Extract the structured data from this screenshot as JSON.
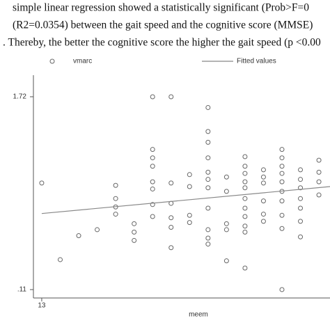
{
  "paragraph_lines": [
    "simple linear regression showed a statistically significant (Prob>F=0",
    "(R2=0.0354) between the gait speed and the cognitive score (MMSE)",
    ". Thereby, the better the cognitive score the higher the gait speed (p <0.00"
  ],
  "chart_data": {
    "type": "scatter",
    "x_label": "meem",
    "xlim": [
      12.55,
      28.6
    ],
    "ylim": [
      0.04,
      1.9
    ],
    "xticks": [
      13
    ],
    "yticks": [
      1.72,
      {
        "value": 0.11,
        "label": ".11"
      }
    ],
    "legend": "top",
    "series": [
      {
        "name": "vmarc",
        "color": "#666666",
        "x": [
          13,
          14,
          15,
          16,
          17,
          17,
          17,
          17,
          18,
          18,
          18,
          19,
          19,
          19,
          19,
          19,
          19,
          19,
          19,
          20,
          20,
          20,
          20,
          20,
          20,
          21,
          21,
          21,
          21,
          22,
          22,
          22,
          22,
          22,
          22,
          22,
          22,
          22,
          22,
          22,
          23,
          23,
          23,
          23,
          23,
          24,
          24,
          24,
          24,
          24,
          24,
          24,
          24,
          24,
          24,
          24,
          25,
          25,
          25,
          25,
          25,
          25,
          26,
          26,
          26,
          26,
          26,
          26,
          26,
          26,
          26,
          26,
          27,
          27,
          27,
          27,
          27,
          27,
          27,
          28,
          28,
          28,
          28
        ],
        "values": [
          1.0,
          0.36,
          0.56,
          0.61,
          0.98,
          0.87,
          0.8,
          0.74,
          0.66,
          0.59,
          0.52,
          1.72,
          1.28,
          1.21,
          1.14,
          1.01,
          0.95,
          0.82,
          0.72,
          1.72,
          1.0,
          0.83,
          0.71,
          0.63,
          0.46,
          1.07,
          0.97,
          0.73,
          0.67,
          1.63,
          1.43,
          1.34,
          1.21,
          1.09,
          1.03,
          0.96,
          0.79,
          0.61,
          0.54,
          0.49,
          1.05,
          0.93,
          0.66,
          0.61,
          0.35,
          1.22,
          1.14,
          1.08,
          1.01,
          0.96,
          0.87,
          0.79,
          0.72,
          0.64,
          0.59,
          0.29,
          1.11,
          1.05,
          1.0,
          0.85,
          0.74,
          0.68,
          1.28,
          1.21,
          1.14,
          1.08,
          1.01,
          0.93,
          0.85,
          0.73,
          0.62,
          0.11,
          1.11,
          1.03,
          0.96,
          0.87,
          0.79,
          0.68,
          0.55,
          1.19,
          1.09,
          1.01,
          0.9
        ]
      },
      {
        "name": "Fitted values",
        "type": "line",
        "color": "#888888",
        "x": [
          13,
          28.6
        ],
        "values": [
          0.745,
          0.97
        ]
      }
    ]
  }
}
